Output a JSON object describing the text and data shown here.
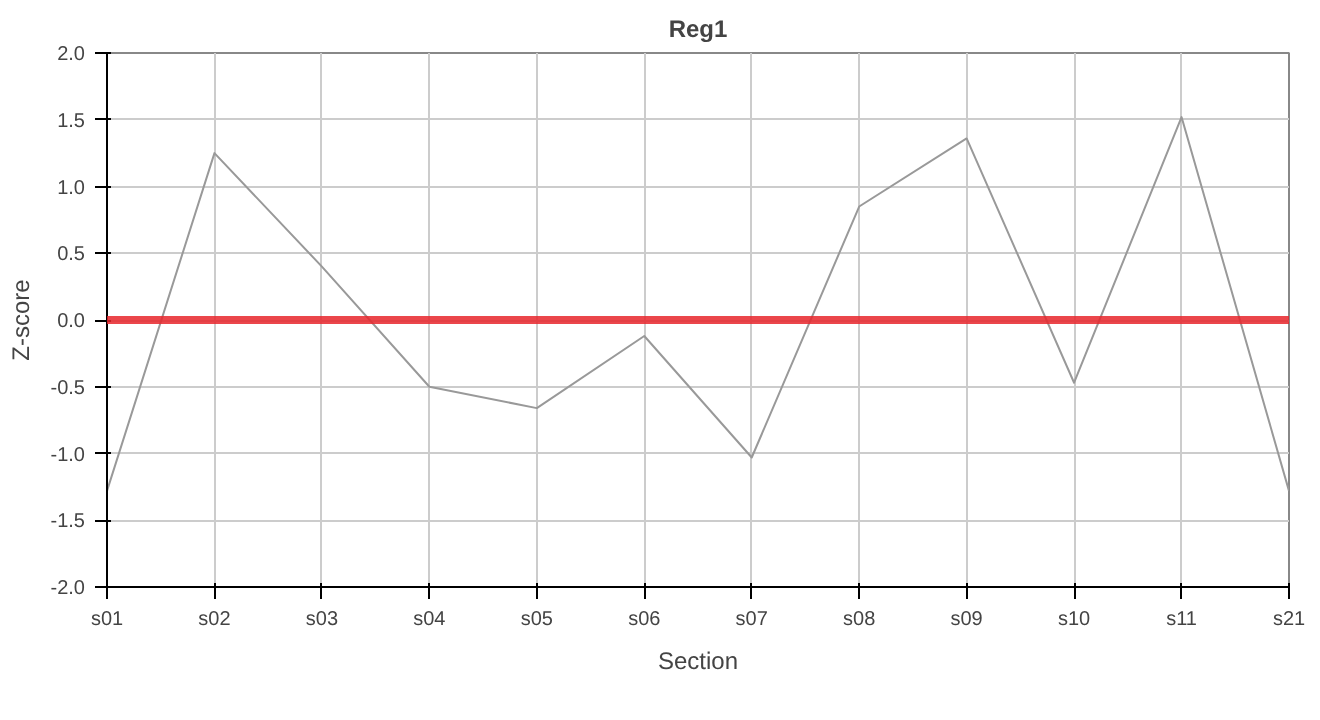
{
  "chart_data": {
    "type": "line",
    "title": "Reg1",
    "xlabel": "Section",
    "ylabel": "Z-score",
    "categories": [
      "s01",
      "s02",
      "s03",
      "s04",
      "s05",
      "s06",
      "s07",
      "s08",
      "s09",
      "s10",
      "s11",
      "s21"
    ],
    "series": [
      {
        "color": "#999999",
        "values": [
          -1.28,
          1.25,
          0.4,
          -0.5,
          -0.66,
          -0.12,
          -1.03,
          0.85,
          1.36,
          -0.47,
          1.52,
          -1.28
        ]
      }
    ],
    "ylim": [
      -2.0,
      2.0
    ],
    "yticks": [
      {
        "value": -2,
        "label": "-2.0"
      },
      {
        "value": -1.5,
        "label": "-1.5"
      },
      {
        "value": -1,
        "label": "-1.0"
      },
      {
        "value": -0.5,
        "label": "-0.5"
      },
      {
        "value": 0,
        "label": "0.0"
      },
      {
        "value": 0.5,
        "label": "0.5"
      },
      {
        "value": 1,
        "label": "1.0"
      },
      {
        "value": 1.5,
        "label": "1.5"
      },
      {
        "value": 2,
        "label": "2.0"
      }
    ],
    "ref_lines": [
      {
        "axis": "y",
        "value": 0,
        "label": null,
        "color": "#e8262b"
      }
    ],
    "grid": true,
    "marker": "none",
    "line_style": "solid"
  }
}
